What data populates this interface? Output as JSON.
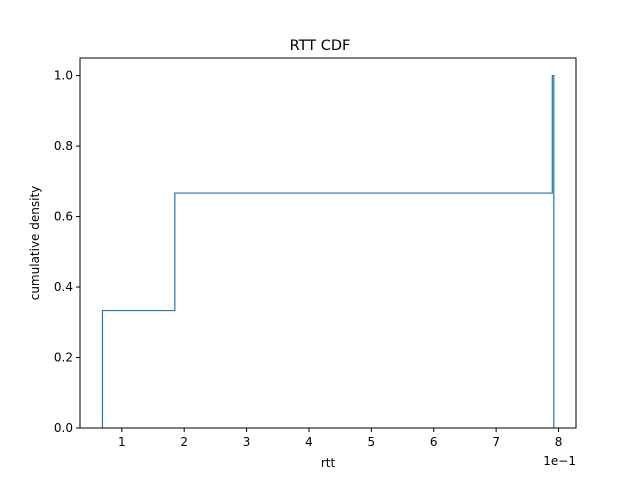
{
  "chart_data": {
    "type": "line",
    "title": "RTT CDF",
    "xlabel": "rtt",
    "ylabel": "cumulative density",
    "x_scale_label": "1e−1",
    "xlim": [
      0.033,
      0.828
    ],
    "ylim": [
      0.0,
      1.05
    ],
    "xticks": [
      0.1,
      0.2,
      0.3,
      0.4,
      0.5,
      0.6,
      0.7,
      0.8
    ],
    "xtick_labels": [
      "1",
      "2",
      "3",
      "4",
      "5",
      "6",
      "7",
      "8"
    ],
    "yticks": [
      0.0,
      0.2,
      0.4,
      0.6,
      0.8,
      1.0
    ],
    "ytick_labels": [
      "0.0",
      "0.2",
      "0.4",
      "0.6",
      "0.8",
      "1.0"
    ],
    "grid": false,
    "series": [
      {
        "color": "#1f77b4",
        "steps": [
          {
            "x": 0.069,
            "y": 0.3333
          },
          {
            "x": 0.185,
            "y": 0.6667
          },
          {
            "x": 0.79,
            "y": 1.0
          }
        ]
      }
    ]
  }
}
